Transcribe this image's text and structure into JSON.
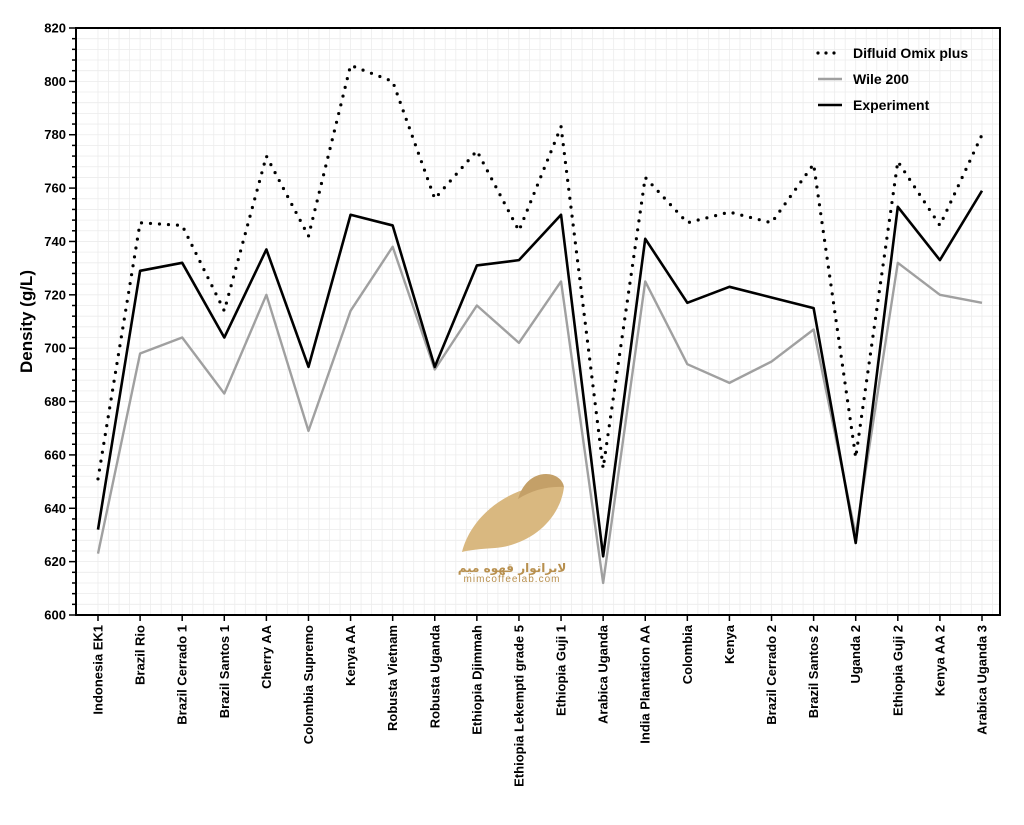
{
  "chart_data": {
    "type": "line",
    "ylabel": "Density (g/L)",
    "xlabel": "",
    "ylim": [
      600,
      820
    ],
    "y_ticks": [
      600,
      620,
      640,
      660,
      680,
      700,
      720,
      740,
      760,
      780,
      800,
      820
    ],
    "grid": true,
    "legend_position": "top-right",
    "categories": [
      "Indonesia EK1",
      "Brazil Rio",
      "Brazil Cerrado 1",
      "Brazil Santos 1",
      "Cherry AA",
      "Colombia Supremo",
      "Kenya AA",
      "Robusta Vietnam",
      "Robusta Uganda",
      "Ethiopia Djimmah",
      "Ethiopia Lekempti grade 5",
      "Ethiopia Guji 1",
      "Arabica Uganda",
      "India Plantation AA",
      "Colombia",
      "Kenya",
      "Brazil Cerrado 2",
      "Brazil Santos 2",
      "Uganda 2",
      "Ethiopia Guji 2",
      "Kenya AA 2",
      "Arabica Uganda 3"
    ],
    "series": [
      {
        "name": "Difluid Omix plus",
        "color": "#000000",
        "style": "dotted",
        "values": [
          651,
          747,
          746,
          714,
          772,
          742,
          806,
          800,
          756,
          774,
          744,
          783,
          655,
          764,
          747,
          751,
          747,
          769,
          659,
          770,
          746,
          780
        ]
      },
      {
        "name": "Wile 200",
        "color": "#a0a0a0",
        "style": "solid",
        "values": [
          623,
          698,
          704,
          683,
          720,
          669,
          714,
          738,
          692,
          716,
          702,
          725,
          612,
          725,
          694,
          687,
          695,
          707,
          630,
          732,
          720,
          717
        ]
      },
      {
        "name": "Experiment",
        "color": "#000000",
        "style": "solid",
        "values": [
          632,
          729,
          732,
          704,
          737,
          693,
          750,
          746,
          693,
          731,
          733,
          750,
          622,
          741,
          717,
          723,
          719,
          715,
          627,
          753,
          733,
          759
        ]
      }
    ]
  },
  "watermark": {
    "name_fa": "لابراتوار قهوه میم",
    "url": "mimcoffeelab.com",
    "color_gold": "#d9b880",
    "color_gold_dark": "#c4a068"
  }
}
